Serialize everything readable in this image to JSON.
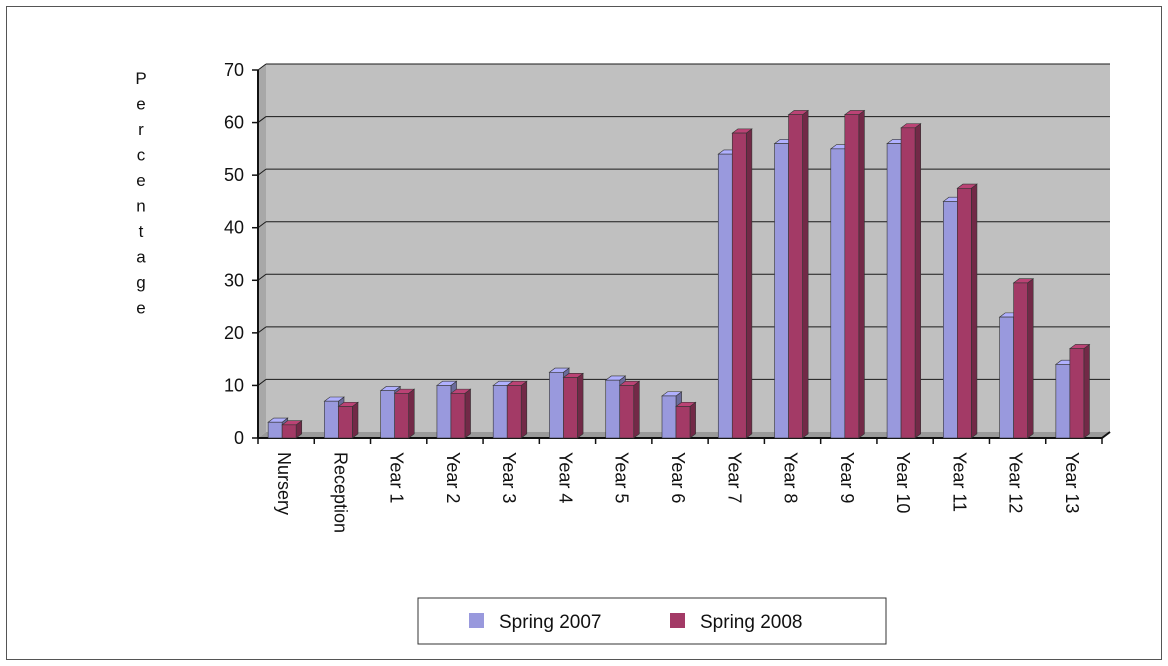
{
  "chart_data": {
    "type": "bar",
    "title": "",
    "xlabel": "",
    "ylabel": "Percentage",
    "ylim": [
      0,
      70
    ],
    "yticks": [
      0,
      10,
      20,
      30,
      40,
      50,
      60,
      70
    ],
    "grid": true,
    "legend_position": "bottom",
    "categories": [
      "Nursery",
      "Reception",
      "Year 1",
      "Year 2",
      "Year 3",
      "Year 4",
      "Year 5",
      "Year 6",
      "Year 7",
      "Year 8",
      "Year 9",
      "Year 10",
      "Year 11",
      "Year 12",
      "Year 13"
    ],
    "series": [
      {
        "name": "Spring 2007",
        "color": "#9999dd",
        "values": [
          3,
          7,
          9,
          10,
          10,
          12.5,
          11,
          8,
          54,
          56,
          55,
          56,
          45,
          23,
          14
        ]
      },
      {
        "name": "Spring 2008",
        "color": "#a33a66",
        "values": [
          2.5,
          6,
          8.5,
          8.5,
          10,
          11.5,
          10,
          6,
          58,
          61.5,
          61.5,
          59,
          47.5,
          29.5,
          17
        ]
      }
    ]
  }
}
